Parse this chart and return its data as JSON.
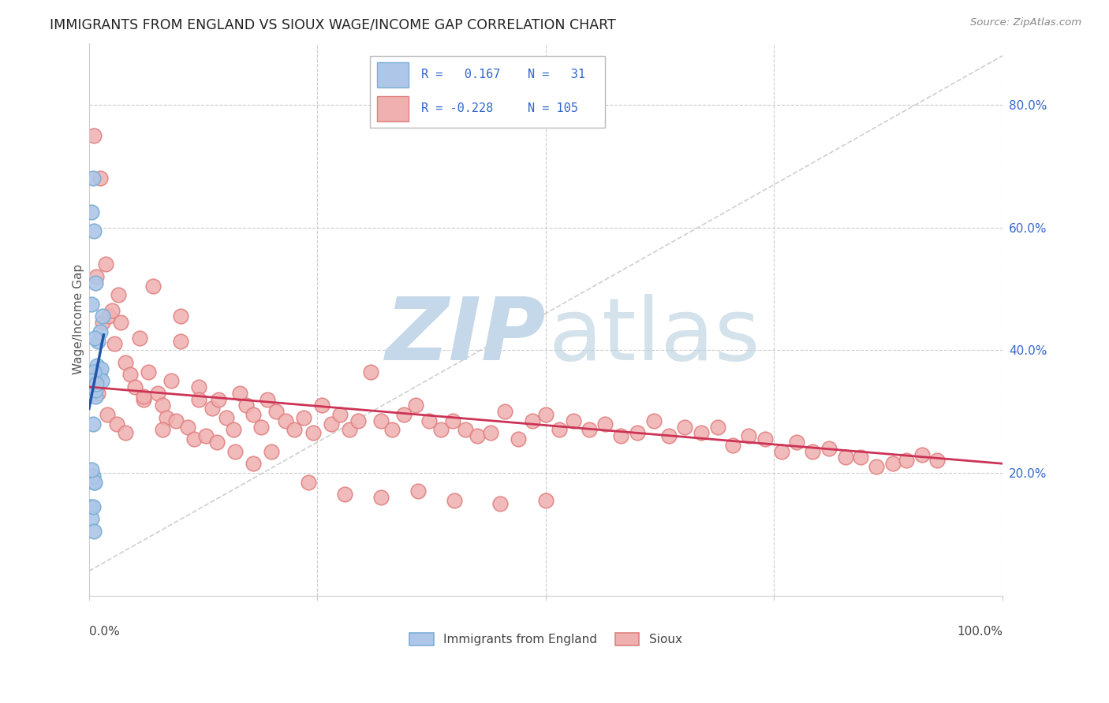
{
  "title": "IMMIGRANTS FROM ENGLAND VS SIOUX WAGE/INCOME GAP CORRELATION CHART",
  "source": "Source: ZipAtlas.com",
  "ylabel": "Wage/Income Gap",
  "r1": 0.167,
  "n1": 31,
  "r2": -0.228,
  "n2": 105,
  "blue_edge": "#7bafd4",
  "blue_face": "#aec6e8",
  "pink_edge": "#e08080",
  "pink_face": "#f0b0b0",
  "blue_line": "#2255aa",
  "pink_line": "#cc3355",
  "ref_line_color": "#bbbbbb",
  "watermark_zip_color": "#c5d8ea",
  "watermark_atlas_color": "#b8cfe0",
  "title_color": "#222222",
  "source_color": "#888888",
  "axis_label_color": "#3366cc",
  "ylabel_color": "#555555",
  "grid_color": "#cccccc",
  "blue_scatter_x": [
    0.002,
    0.003,
    0.004,
    0.005,
    0.006,
    0.007,
    0.008,
    0.009,
    0.01,
    0.011,
    0.012,
    0.013,
    0.014,
    0.015,
    0.003,
    0.004,
    0.005,
    0.006,
    0.007,
    0.003,
    0.004,
    0.005,
    0.002,
    0.003,
    0.004,
    0.006,
    0.007,
    0.008,
    0.003,
    0.004,
    0.005
  ],
  "blue_scatter_y": [
    0.33,
    0.625,
    0.68,
    0.595,
    0.355,
    0.325,
    0.355,
    0.375,
    0.415,
    0.36,
    0.43,
    0.37,
    0.35,
    0.455,
    0.475,
    0.35,
    0.365,
    0.42,
    0.51,
    0.35,
    0.28,
    0.185,
    0.145,
    0.125,
    0.195,
    0.185,
    0.335,
    0.345,
    0.205,
    0.145,
    0.105
  ],
  "pink_scatter_x": [
    0.005,
    0.008,
    0.012,
    0.015,
    0.018,
    0.022,
    0.025,
    0.028,
    0.032,
    0.035,
    0.04,
    0.045,
    0.05,
    0.055,
    0.06,
    0.065,
    0.07,
    0.075,
    0.08,
    0.085,
    0.09,
    0.095,
    0.1,
    0.108,
    0.115,
    0.12,
    0.128,
    0.135,
    0.142,
    0.15,
    0.158,
    0.165,
    0.172,
    0.18,
    0.188,
    0.195,
    0.205,
    0.215,
    0.225,
    0.235,
    0.245,
    0.255,
    0.265,
    0.275,
    0.285,
    0.295,
    0.308,
    0.32,
    0.332,
    0.345,
    0.358,
    0.372,
    0.385,
    0.398,
    0.412,
    0.425,
    0.44,
    0.455,
    0.47,
    0.485,
    0.5,
    0.515,
    0.53,
    0.548,
    0.565,
    0.582,
    0.6,
    0.618,
    0.635,
    0.652,
    0.67,
    0.688,
    0.705,
    0.722,
    0.74,
    0.758,
    0.775,
    0.792,
    0.81,
    0.828,
    0.845,
    0.862,
    0.88,
    0.895,
    0.912,
    0.928,
    0.01,
    0.02,
    0.03,
    0.04,
    0.06,
    0.08,
    0.1,
    0.12,
    0.14,
    0.16,
    0.18,
    0.2,
    0.24,
    0.28,
    0.32,
    0.36,
    0.4,
    0.45,
    0.5
  ],
  "pink_scatter_y": [
    0.75,
    0.52,
    0.68,
    0.445,
    0.54,
    0.455,
    0.465,
    0.41,
    0.49,
    0.445,
    0.38,
    0.36,
    0.34,
    0.42,
    0.32,
    0.365,
    0.505,
    0.33,
    0.31,
    0.29,
    0.35,
    0.285,
    0.455,
    0.275,
    0.255,
    0.34,
    0.26,
    0.305,
    0.32,
    0.29,
    0.27,
    0.33,
    0.31,
    0.295,
    0.275,
    0.32,
    0.3,
    0.285,
    0.27,
    0.29,
    0.265,
    0.31,
    0.28,
    0.295,
    0.27,
    0.285,
    0.365,
    0.285,
    0.27,
    0.295,
    0.31,
    0.285,
    0.27,
    0.285,
    0.27,
    0.26,
    0.265,
    0.3,
    0.255,
    0.285,
    0.295,
    0.27,
    0.285,
    0.27,
    0.28,
    0.26,
    0.265,
    0.285,
    0.26,
    0.275,
    0.265,
    0.275,
    0.245,
    0.26,
    0.255,
    0.235,
    0.25,
    0.235,
    0.24,
    0.225,
    0.225,
    0.21,
    0.215,
    0.22,
    0.23,
    0.22,
    0.33,
    0.295,
    0.28,
    0.265,
    0.325,
    0.27,
    0.415,
    0.32,
    0.25,
    0.235,
    0.215,
    0.235,
    0.185,
    0.165,
    0.16,
    0.17,
    0.155,
    0.15,
    0.155
  ],
  "blue_line_x": [
    0.0,
    0.016
  ],
  "blue_line_y": [
    0.305,
    0.425
  ],
  "pink_line_x": [
    0.0,
    1.0
  ],
  "pink_line_y": [
    0.34,
    0.215
  ],
  "ref_line_x": [
    0.0,
    1.0
  ],
  "ref_line_y": [
    0.04,
    0.88
  ],
  "xmin": 0.0,
  "xmax": 1.0,
  "ymin": 0.0,
  "ymax": 0.9,
  "yticks": [
    0.2,
    0.4,
    0.6,
    0.8
  ],
  "scatter_size": 180
}
